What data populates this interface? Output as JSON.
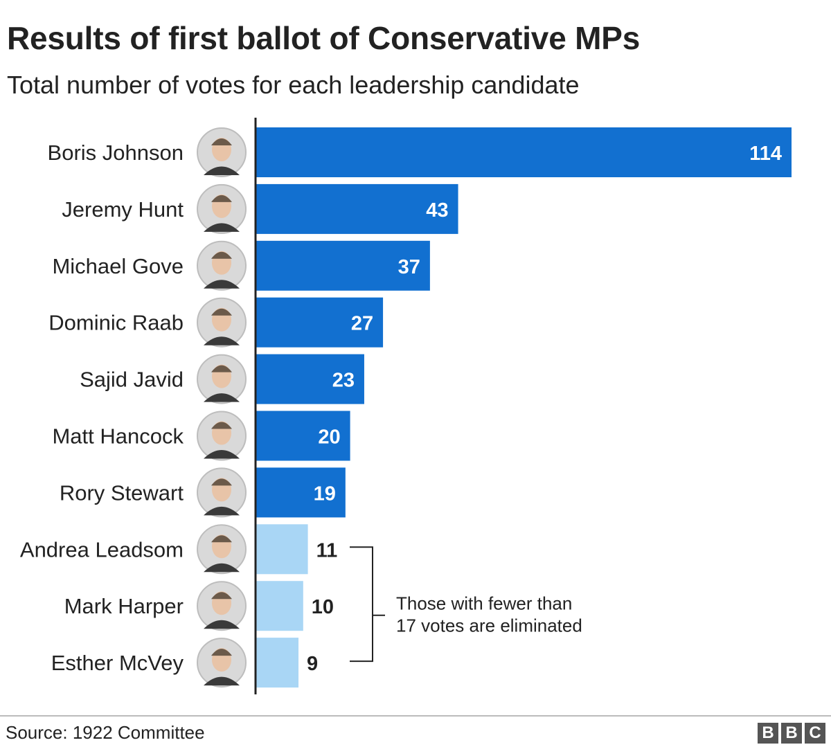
{
  "header": {
    "title": "Results of first ballot of Conservative MPs",
    "subtitle": "Total number of votes for each leadership candidate"
  },
  "chart_data": {
    "type": "bar",
    "orientation": "horizontal",
    "title": "Results of first ballot of Conservative MPs",
    "subtitle": "Total number of votes for each leadership candidate",
    "categories": [
      "Boris Johnson",
      "Jeremy Hunt",
      "Michael Gove",
      "Dominic Raab",
      "Sajid Javid",
      "Matt Hancock",
      "Rory Stewart",
      "Andrea Leadsom",
      "Mark Harper",
      "Esther McVey"
    ],
    "values": [
      114,
      43,
      37,
      27,
      23,
      20,
      19,
      11,
      10,
      9
    ],
    "eliminated": [
      false,
      false,
      false,
      false,
      false,
      false,
      false,
      true,
      true,
      true
    ],
    "xlim": [
      0,
      114
    ],
    "colors": {
      "advancing": "#1270d0",
      "eliminated": "#a9d6f5",
      "label_inside": "#ffffff",
      "label_outside": "#222222"
    },
    "annotation": {
      "text_line1": "Those with fewer than",
      "text_line2": "17 votes are eliminated"
    },
    "grid": false,
    "legend": "none",
    "candidate_photos": "portrait-icon"
  },
  "footer": {
    "source": "Source: 1922 Committee",
    "logo_letters": [
      "B",
      "B",
      "C"
    ]
  }
}
